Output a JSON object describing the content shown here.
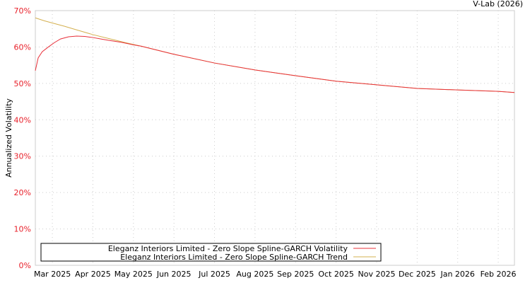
{
  "chart_data": {
    "type": "line",
    "title": "",
    "credit": "V-Lab (2026)",
    "ylabel": "Annualized Volatility",
    "xlabel": "",
    "ylim": [
      0,
      70
    ],
    "xlim": [
      -0.42,
      11.4
    ],
    "x_unit": "months since Mar 2025",
    "yticks": [
      "0%",
      "10%",
      "20%",
      "30%",
      "40%",
      "50%",
      "60%",
      "70%"
    ],
    "xticks": [
      "Mar 2025",
      "Apr 2025",
      "May 2025",
      "Jun 2025",
      "Jul 2025",
      "Aug 2025",
      "Sep 2025",
      "Oct 2025",
      "Nov 2025",
      "Dec 2025",
      "Jan 2026",
      "Feb 2026"
    ],
    "grid": true,
    "legend_position": "bottom",
    "series": [
      {
        "name": "Eleganz Interiors Limited - Zero Slope Spline-GARCH Volatility",
        "color": "#e8303a",
        "x": [
          -0.42,
          -0.35,
          -0.25,
          -0.1,
          0.05,
          0.2,
          0.4,
          0.6,
          0.8,
          1.0,
          1.2,
          1.4,
          1.7,
          2.0,
          2.2,
          3,
          4,
          5,
          6,
          7,
          8,
          9,
          10,
          11,
          11.4
        ],
        "y": [
          53.5,
          57,
          58.7,
          60,
          61.2,
          62.2,
          62.8,
          63,
          62.9,
          62.6,
          62.2,
          61.8,
          61.3,
          60.6,
          60.2,
          58,
          55.6,
          53.7,
          52.1,
          50.6,
          49.6,
          48.6,
          48.2,
          47.8,
          47.5
        ]
      },
      {
        "name": "Eleganz Interiors Limited - Zero Slope Spline-GARCH Trend",
        "color": "#d4b050",
        "x": [
          -0.42,
          -0.2,
          0,
          0.3,
          0.6,
          1.0,
          1.4,
          1.8,
          2.2,
          3,
          4,
          5,
          6,
          7,
          8,
          9,
          10,
          11,
          11.4
        ],
        "y": [
          68,
          67.2,
          66.6,
          65.7,
          64.7,
          63.4,
          62.3,
          61.2,
          60.2,
          58,
          55.6,
          53.7,
          52.1,
          50.6,
          49.6,
          48.6,
          48.2,
          47.8,
          47.5
        ]
      }
    ]
  }
}
